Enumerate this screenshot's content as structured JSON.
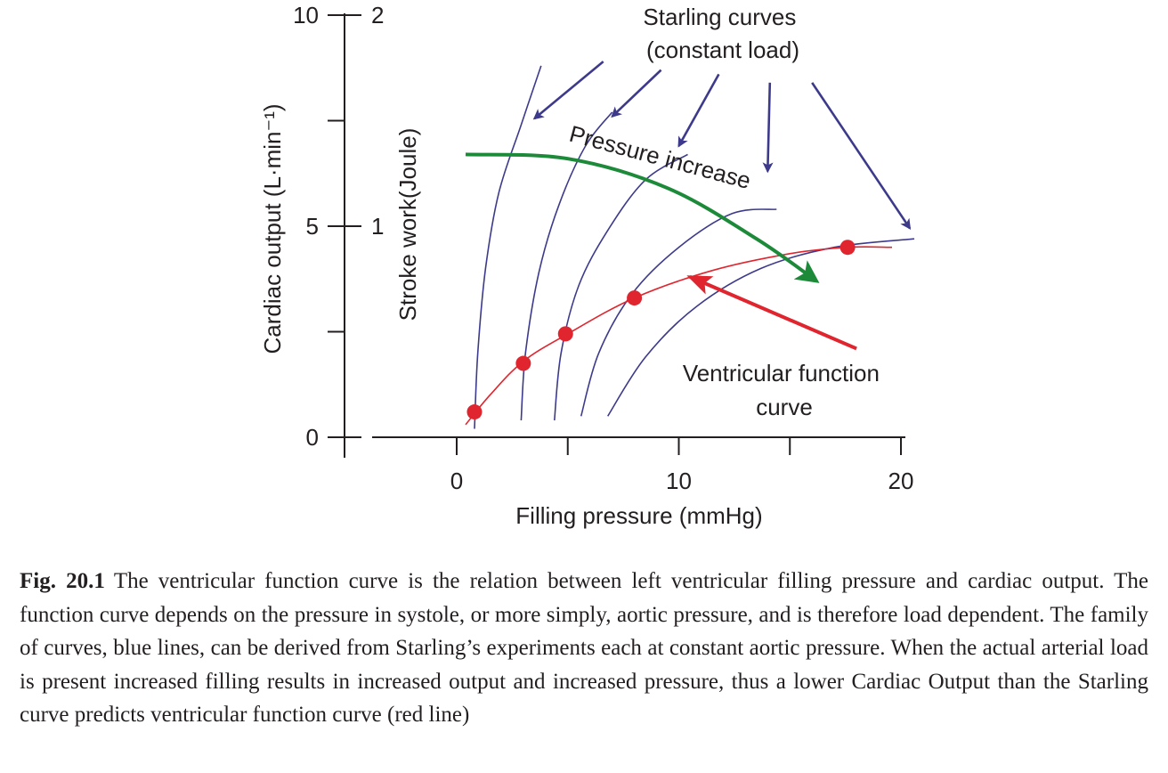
{
  "figure": {
    "label": "Fig. 20.1",
    "caption": "The ventricular function curve is the relation between left ventricular filling pressure and cardiac output. The function curve depends on the pressure in systole, or more simply, aortic pressure, and is therefore load dependent. The family of curves, blue lines, can be derived from Starling’s experiments each at constant aortic pressure. When the actual arterial load is present increased filling results in increased output and increased pressure, thus a lower Cardiac Output than the Starling curve predicts ventricular function curve (red line)"
  },
  "chart_data": {
    "type": "line",
    "xlabel": "Filling pressure (mmHg)",
    "xlim": [
      -3.8,
      20.2
    ],
    "xticks": [
      0,
      5,
      10,
      15,
      20
    ],
    "xtick_labels": [
      "0",
      "",
      "10",
      "",
      "20"
    ],
    "y_left": {
      "label": "Cardiac output (L·min⁻¹)",
      "lim": [
        0,
        10
      ],
      "ticks": [
        0,
        2.5,
        5,
        7.5,
        10
      ],
      "tick_labels": [
        "0",
        "",
        "5",
        "",
        "10"
      ]
    },
    "y_right": {
      "label": "Stroke work(Joule)",
      "lim": [
        0,
        2
      ],
      "ticks": [
        0,
        1,
        2
      ],
      "tick_labels": [
        "",
        "1",
        "2"
      ]
    },
    "colors": {
      "starling": "#3d3a8c",
      "function_curve": "#e0252e",
      "pressure_arrow": "#1d8a3a",
      "axis": "#231f20"
    },
    "series": [
      {
        "kind": "starling",
        "points": [
          [
            0.8,
            0.2
          ],
          [
            0.95,
            2.0
          ],
          [
            1.3,
            4.0
          ],
          [
            1.9,
            5.8
          ],
          [
            2.9,
            7.4
          ],
          [
            3.8,
            8.8
          ]
        ]
      },
      {
        "kind": "starling",
        "points": [
          [
            2.9,
            0.4
          ],
          [
            3.1,
            2.0
          ],
          [
            3.7,
            3.9
          ],
          [
            4.6,
            5.5
          ],
          [
            5.8,
            6.9
          ],
          [
            7.0,
            7.7
          ]
        ]
      },
      {
        "kind": "starling",
        "points": [
          [
            4.4,
            0.4
          ],
          [
            4.7,
            2.0
          ],
          [
            5.5,
            3.6
          ],
          [
            6.8,
            4.9
          ],
          [
            8.5,
            6.1
          ],
          [
            10.4,
            6.7
          ]
        ]
      },
      {
        "kind": "starling",
        "points": [
          [
            5.6,
            0.5
          ],
          [
            6.4,
            2.0
          ],
          [
            7.9,
            3.4
          ],
          [
            10.0,
            4.5
          ],
          [
            12.4,
            5.3
          ],
          [
            14.4,
            5.4
          ]
        ]
      },
      {
        "kind": "starling",
        "points": [
          [
            6.8,
            0.5
          ],
          [
            8.5,
            1.9
          ],
          [
            10.8,
            3.1
          ],
          [
            13.7,
            4.0
          ],
          [
            17.0,
            4.5
          ],
          [
            20.6,
            4.7
          ]
        ]
      },
      {
        "name": "Ventricular function curve",
        "kind": "function",
        "points": [
          [
            0.4,
            0.3
          ],
          [
            1.5,
            1.0
          ],
          [
            3.0,
            1.8
          ],
          [
            5.0,
            2.45
          ],
          [
            8.0,
            3.3
          ],
          [
            11.5,
            3.95
          ],
          [
            15.0,
            4.35
          ],
          [
            17.6,
            4.5
          ],
          [
            19.6,
            4.5
          ]
        ],
        "markers": [
          [
            0.8,
            0.6
          ],
          [
            3.0,
            1.75
          ],
          [
            4.9,
            2.45
          ],
          [
            8.0,
            3.3
          ],
          [
            17.6,
            4.5
          ]
        ]
      }
    ],
    "annotations": [
      {
        "text": [
          "Starling curves",
          "(constant load)"
        ],
        "color": "starling",
        "anchor": [
          15.1,
          9.9
        ],
        "arrows": [
          {
            "from": [
              6.6,
              8.9
            ],
            "to": [
              3.5,
              7.55
            ]
          },
          {
            "from": [
              9.2,
              8.7
            ],
            "to": [
              7.0,
              7.6
            ]
          },
          {
            "from": [
              11.8,
              8.6
            ],
            "to": [
              10.0,
              6.9
            ]
          },
          {
            "from": [
              14.1,
              8.4
            ],
            "to": [
              14.0,
              6.3
            ]
          },
          {
            "from": [
              16.0,
              8.4
            ],
            "to": [
              20.4,
              4.95
            ]
          }
        ]
      },
      {
        "text": [
          "Pressure increase"
        ],
        "color": "pressure_arrow",
        "anchor": [
          5.1,
          7.35
        ],
        "rotate": 15,
        "arrow": {
          "points": [
            [
              0.4,
              6.7
            ],
            [
              5.0,
              6.6
            ],
            [
              9.5,
              5.9
            ],
            [
              13.5,
              4.7
            ],
            [
              16.2,
              3.7
            ]
          ]
        }
      },
      {
        "text": [
          "Ventricular function",
          "curve"
        ],
        "color": "function_curve",
        "anchor": [
          15.8,
          2.05
        ],
        "arrow": {
          "from": [
            18.0,
            2.1
          ],
          "to": [
            10.5,
            3.8
          ]
        }
      }
    ]
  }
}
